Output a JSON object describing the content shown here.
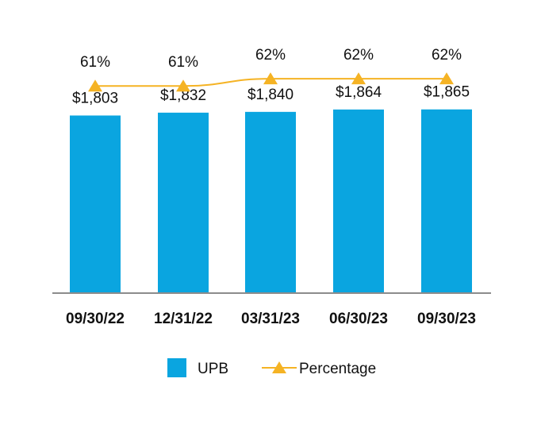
{
  "chart_data": {
    "type": "bar",
    "categories": [
      "09/30/22",
      "12/31/22",
      "03/31/23",
      "06/30/23",
      "09/30/23"
    ],
    "series": [
      {
        "name": "UPB",
        "type": "bar",
        "values": [
          1803,
          1832,
          1840,
          1864,
          1865
        ],
        "labels": [
          "$1,803",
          "$1,832",
          "$1,840",
          "$1,864",
          "$1,865"
        ],
        "color": "#0AA5E0"
      },
      {
        "name": "Percentage",
        "type": "line",
        "values": [
          61,
          61,
          62,
          62,
          62
        ],
        "labels": [
          "61%",
          "61%",
          "62%",
          "62%",
          "62%"
        ],
        "color": "#F5B324",
        "marker": "triangle-icon"
      }
    ],
    "title": "",
    "xlabel": "",
    "ylabel": "",
    "ylim": [
      0,
      2000
    ],
    "grid": false,
    "legend": "bottom-center"
  }
}
